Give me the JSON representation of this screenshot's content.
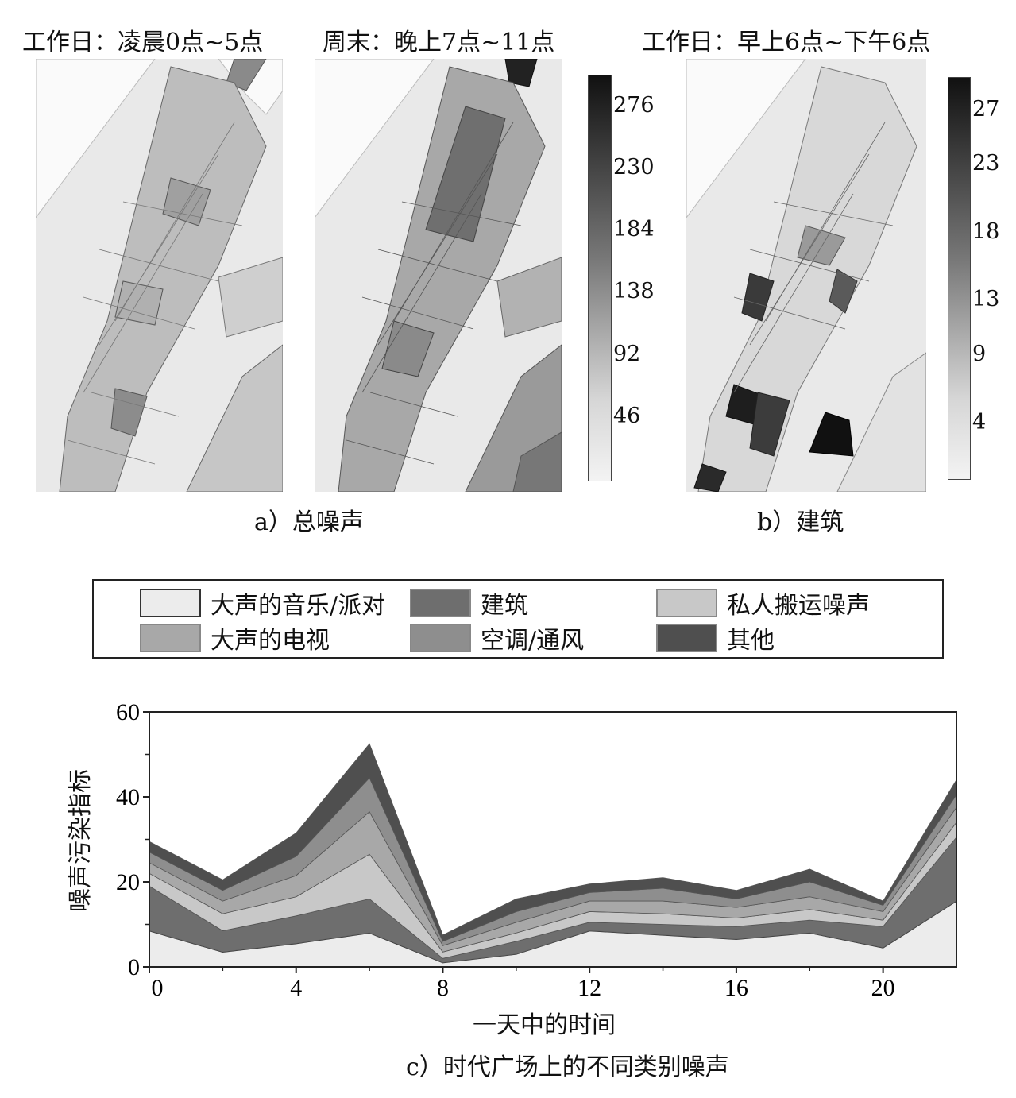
{
  "panel_a": {
    "maps": [
      {
        "title": "工作日：凌晨0点~5点"
      },
      {
        "title": "周末：晚上7点~11点"
      }
    ],
    "colorbar": {
      "ticks": [
        "276",
        "230",
        "184",
        "138",
        "92",
        "46"
      ],
      "min": 0,
      "max": 300,
      "tick_values": [
        276,
        230,
        184,
        138,
        92,
        46
      ]
    },
    "caption": "a）总噪声"
  },
  "panel_b": {
    "map": {
      "title": "工作日：早上6点~下午6点"
    },
    "colorbar": {
      "ticks": [
        "27",
        "23",
        "18",
        "13",
        "9",
        "4"
      ],
      "min": 0,
      "max": 29.5,
      "tick_values": [
        27,
        23,
        18,
        13,
        9,
        4
      ]
    },
    "caption": "b）建筑"
  },
  "legend": {
    "items": [
      {
        "label": "大声的音乐/派对",
        "color": "#ececec"
      },
      {
        "label": "建筑",
        "color": "#6e6e6e"
      },
      {
        "label": "私人搬运噪声",
        "color": "#c8c8c8"
      },
      {
        "label": "大声的电视",
        "color": "#a8a8a8"
      },
      {
        "label": "空调/通风",
        "color": "#8e8e8e"
      },
      {
        "label": "其他",
        "color": "#4f4f4f"
      }
    ]
  },
  "chart_data": {
    "type": "area",
    "stacked": true,
    "x": [
      0,
      2,
      4,
      6,
      8,
      10,
      12,
      14,
      16,
      18,
      20,
      22
    ],
    "series": [
      {
        "name": "大声的音乐/派对",
        "color": "#ececec",
        "values": [
          8.5,
          3.5,
          5.5,
          8,
          1,
          3,
          8.5,
          7.5,
          6.5,
          8,
          4.5,
          15.5
        ]
      },
      {
        "name": "建筑",
        "color": "#6e6e6e",
        "values": [
          10.5,
          5,
          6.5,
          8,
          1,
          3,
          2,
          2.5,
          3,
          3,
          5,
          15
        ]
      },
      {
        "name": "私人搬运噪声",
        "color": "#c8c8c8",
        "values": [
          3,
          4,
          4.5,
          10.5,
          1.5,
          2,
          2.5,
          2.5,
          2,
          2.5,
          1.5,
          3.5
        ]
      },
      {
        "name": "大声的电视",
        "color": "#a8a8a8",
        "values": [
          2.5,
          3,
          5,
          10,
          1.5,
          2.5,
          2.5,
          3,
          2.5,
          3,
          2,
          3.5
        ]
      },
      {
        "name": "空调/通风",
        "color": "#8e8e8e",
        "values": [
          2.5,
          2.5,
          4.5,
          8,
          1,
          2.5,
          2,
          3,
          2,
          3.5,
          1.5,
          3
        ]
      },
      {
        "name": "其他",
        "color": "#4f4f4f",
        "values": [
          2.5,
          2.5,
          5.5,
          8,
          1.5,
          3,
          2,
          2.5,
          2,
          3,
          1,
          3.5
        ]
      }
    ],
    "title": "",
    "xlabel": "一天中的时间",
    "ylabel": "噪声污染指标",
    "xlim": [
      0,
      22
    ],
    "ylim": [
      0,
      60
    ],
    "xticks": [
      0,
      4,
      8,
      12,
      16,
      20
    ],
    "yticks": [
      0,
      20,
      40,
      60
    ]
  },
  "chart_caption": "c）时代广场上的不同类别噪声"
}
